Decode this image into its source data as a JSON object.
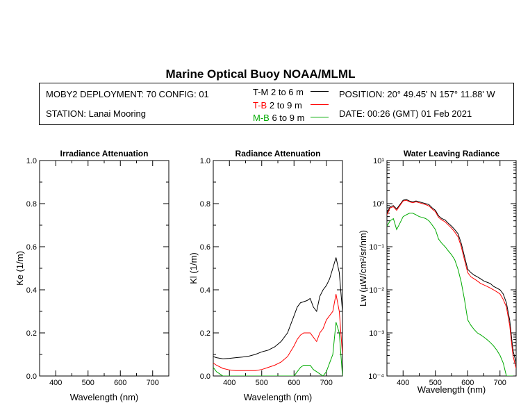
{
  "title": "Marine Optical Buoy NOAA/MLML",
  "info": {
    "deployment": "MOBY2 DEPLOYMENT: 70 CONFIG: 01",
    "station": "STATION: Lanai Mooring",
    "position": "POSITION: 20° 49.45' N   157° 11.88' W",
    "date": "DATE: 00:26 (GMT) 01 Feb 2021",
    "legend": [
      {
        "code": "T-M",
        "range": "2 to 6  m",
        "color": "#000000"
      },
      {
        "code": "T-B",
        "range": "2 to 9  m",
        "color": "#ff0000"
      },
      {
        "code": "M-B",
        "range": "6 to 9  m",
        "color": "#00aa00"
      }
    ]
  },
  "chart_data": [
    {
      "type": "line",
      "title": "Irradiance Attenuation",
      "xlabel": "Wavelength (nm)",
      "ylabel": "Ke  (1/m)",
      "xlim": [
        350,
        750
      ],
      "ylim": [
        0,
        1
      ],
      "xticks": [
        "400",
        "500",
        "600",
        "700"
      ],
      "yticks": [
        "0.0",
        "0.2",
        "0.4",
        "0.6",
        "0.8",
        "1.0"
      ],
      "series": []
    },
    {
      "type": "line",
      "title": "Radiance Attenuation",
      "xlabel": "Wavelength (nm)",
      "ylabel": "Kl  (1/m)",
      "xlim": [
        350,
        750
      ],
      "ylim": [
        0,
        1
      ],
      "xticks": [
        "400",
        "500",
        "600",
        "700"
      ],
      "yticks": [
        "0.0",
        "0.2",
        "0.4",
        "0.6",
        "0.8",
        "1.0"
      ],
      "series": [
        {
          "color": "#000000",
          "x": [
            350,
            360,
            380,
            400,
            420,
            440,
            460,
            480,
            500,
            520,
            540,
            560,
            580,
            600,
            610,
            620,
            630,
            640,
            650,
            660,
            670,
            680,
            690,
            700,
            710,
            720,
            730,
            740,
            750
          ],
          "y": [
            0.09,
            0.085,
            0.08,
            0.082,
            0.085,
            0.088,
            0.092,
            0.1,
            0.112,
            0.12,
            0.135,
            0.16,
            0.2,
            0.28,
            0.32,
            0.34,
            0.345,
            0.35,
            0.36,
            0.32,
            0.3,
            0.37,
            0.4,
            0.42,
            0.45,
            0.5,
            0.55,
            0.48,
            0.3
          ]
        },
        {
          "color": "#ff0000",
          "x": [
            350,
            360,
            380,
            400,
            420,
            440,
            460,
            480,
            500,
            520,
            540,
            560,
            580,
            600,
            610,
            620,
            630,
            640,
            650,
            660,
            670,
            680,
            690,
            700,
            710,
            720,
            730,
            740,
            750
          ],
          "y": [
            0.06,
            0.05,
            0.035,
            0.028,
            0.025,
            0.025,
            0.025,
            0.025,
            0.03,
            0.04,
            0.05,
            0.065,
            0.09,
            0.14,
            0.17,
            0.19,
            0.2,
            0.2,
            0.2,
            0.18,
            0.16,
            0.2,
            0.22,
            0.26,
            0.28,
            0.3,
            0.38,
            0.3,
            0.1
          ]
        },
        {
          "color": "#00aa00",
          "x": [
            350,
            360,
            370,
            380,
            600,
            610,
            620,
            630,
            640,
            650,
            660,
            670,
            680,
            690,
            700,
            710,
            720,
            730,
            740,
            750
          ],
          "y": [
            0.04,
            0.02,
            0.01,
            0.0,
            0.0,
            0.02,
            0.04,
            0.05,
            0.05,
            0.05,
            0.03,
            0.02,
            0.01,
            0.0,
            0.02,
            0.06,
            0.1,
            0.25,
            0.2,
            0.0
          ]
        }
      ]
    },
    {
      "type": "line",
      "title": "Water Leaving Radiance",
      "xlabel": "Wavelength (nm)",
      "ylabel": "Lw  (µW/cm²/sr/nm)",
      "xscale": "linear",
      "yscale": "log",
      "xlim": [
        350,
        750
      ],
      "ylim": [
        0.0001,
        10
      ],
      "xticks": [
        "400",
        "500",
        "600",
        "700"
      ],
      "yticks": [
        "10⁻⁴",
        "10⁻³",
        "10⁻²",
        "10⁻¹",
        "10⁰",
        "10¹"
      ],
      "series": [
        {
          "color": "#000000",
          "x": [
            350,
            360,
            370,
            380,
            390,
            400,
            410,
            420,
            430,
            440,
            450,
            460,
            470,
            480,
            490,
            500,
            510,
            520,
            530,
            540,
            550,
            560,
            570,
            580,
            590,
            600,
            610,
            620,
            630,
            640,
            650,
            660,
            670,
            680,
            690,
            700,
            710,
            720,
            730,
            740,
            750
          ],
          "y": [
            0.6,
            0.85,
            0.9,
            0.75,
            0.95,
            1.2,
            1.25,
            1.15,
            1.1,
            1.15,
            1.1,
            1.05,
            1.0,
            0.95,
            0.8,
            0.7,
            0.52,
            0.45,
            0.42,
            0.35,
            0.3,
            0.25,
            0.2,
            0.12,
            0.06,
            0.03,
            0.025,
            0.022,
            0.02,
            0.018,
            0.016,
            0.015,
            0.014,
            0.012,
            0.011,
            0.01,
            0.008,
            0.005,
            0.002,
            0.0004,
            0.0002
          ]
        },
        {
          "color": "#ff0000",
          "x": [
            350,
            360,
            370,
            380,
            390,
            400,
            410,
            420,
            430,
            440,
            450,
            460,
            470,
            480,
            490,
            500,
            510,
            520,
            530,
            540,
            550,
            560,
            570,
            580,
            590,
            600,
            610,
            620,
            630,
            640,
            650,
            660,
            670,
            680,
            690,
            700,
            710,
            720,
            730,
            740,
            750
          ],
          "y": [
            0.55,
            0.8,
            0.85,
            0.7,
            0.9,
            1.15,
            1.2,
            1.1,
            1.05,
            1.1,
            1.05,
            1.0,
            0.95,
            0.88,
            0.75,
            0.65,
            0.48,
            0.42,
            0.38,
            0.32,
            0.27,
            0.22,
            0.17,
            0.1,
            0.05,
            0.025,
            0.02,
            0.018,
            0.016,
            0.014,
            0.013,
            0.012,
            0.011,
            0.01,
            0.009,
            0.008,
            0.006,
            0.004,
            0.0015,
            0.0003,
            0.00015
          ]
        },
        {
          "color": "#00aa00",
          "x": [
            350,
            360,
            370,
            380,
            390,
            400,
            410,
            420,
            430,
            440,
            450,
            460,
            470,
            480,
            490,
            500,
            510,
            520,
            530,
            540,
            550,
            560,
            570,
            580,
            590,
            600,
            610,
            620,
            630,
            640,
            650,
            660,
            670,
            680,
            690,
            700,
            710,
            720,
            730,
            740
          ],
          "y": [
            0.3,
            0.4,
            0.45,
            0.25,
            0.35,
            0.5,
            0.55,
            0.6,
            0.6,
            0.55,
            0.5,
            0.48,
            0.45,
            0.4,
            0.32,
            0.25,
            0.15,
            0.12,
            0.1,
            0.08,
            0.065,
            0.05,
            0.03,
            0.015,
            0.006,
            0.002,
            0.0015,
            0.0012,
            0.001,
            0.0009,
            0.0008,
            0.0007,
            0.0006,
            0.0005,
            0.0004,
            0.0003,
            0.0002,
            0.0001,
            0.0001,
            0.0001
          ]
        }
      ]
    }
  ]
}
